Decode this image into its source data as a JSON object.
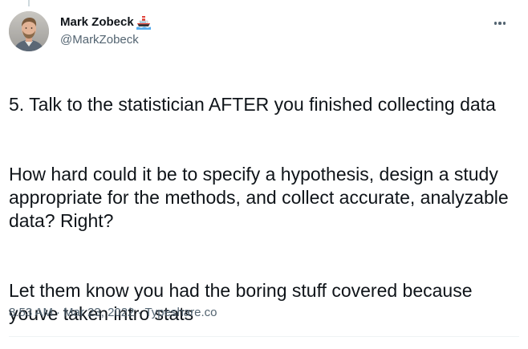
{
  "author": {
    "display_name": "Mark Zobeck",
    "handle": "@MarkZobeck",
    "name_emoji_icon": "ship-icon"
  },
  "tweet": {
    "paragraphs": [
      "5. Talk to the statistician AFTER you finished collecting data",
      "How hard could it be to specify a hypothesis, design a study appropriate for the methods, and collect accurate, analyzable data? Right?",
      "Let them know you had the boring stuff covered because youve taken intro stats"
    ]
  },
  "meta": {
    "time": "8:53 AM",
    "separator": "·",
    "date": "Mar 23, 2022",
    "source": "Typeshare.co"
  },
  "icons": {
    "more": "more-dots-icon",
    "avatar": "avatar"
  },
  "colors": {
    "text": "#0f1419",
    "secondary": "#536471",
    "divider": "#eff3f4"
  }
}
